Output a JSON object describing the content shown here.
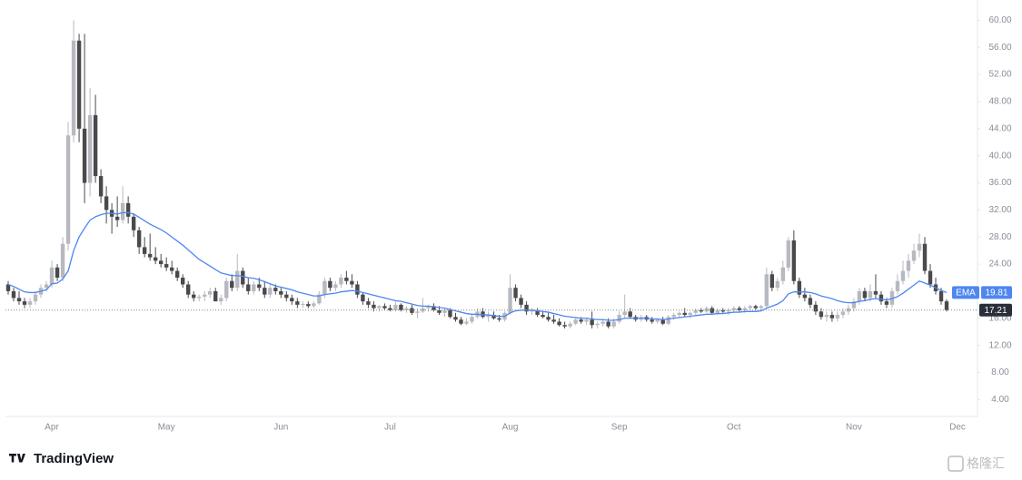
{
  "chart_data": {
    "type": "candlestick",
    "categories": [
      null,
      null,
      null,
      null,
      null,
      null,
      null,
      null,
      "Apr",
      null,
      null,
      null,
      null,
      null,
      null,
      null,
      null,
      null,
      null,
      null,
      null,
      null,
      null,
      null,
      null,
      null,
      null,
      null,
      null,
      "May",
      null,
      null,
      null,
      null,
      null,
      null,
      null,
      null,
      null,
      null,
      null,
      null,
      null,
      null,
      null,
      null,
      null,
      null,
      null,
      null,
      "Jun",
      null,
      null,
      null,
      null,
      null,
      null,
      null,
      null,
      null,
      null,
      null,
      null,
      null,
      null,
      null,
      null,
      null,
      null,
      null,
      "Jul",
      null,
      null,
      null,
      null,
      null,
      null,
      null,
      null,
      null,
      null,
      null,
      null,
      null,
      null,
      null,
      null,
      null,
      null,
      null,
      null,
      null,
      "Aug",
      null,
      null,
      null,
      null,
      null,
      null,
      null,
      null,
      null,
      null,
      null,
      null,
      null,
      null,
      null,
      null,
      null,
      null,
      null,
      "Sep",
      null,
      null,
      null,
      null,
      null,
      null,
      null,
      null,
      null,
      null,
      null,
      null,
      null,
      null,
      null,
      null,
      null,
      null,
      null,
      null,
      "Oct",
      null,
      null,
      null,
      null,
      null,
      null,
      null,
      null,
      null,
      null,
      null,
      null,
      null,
      null,
      null,
      null,
      null,
      null,
      null,
      null,
      null,
      "Nov",
      null,
      null,
      null,
      null,
      null,
      null,
      null,
      null,
      null,
      null,
      null,
      null,
      null,
      null,
      null,
      null,
      null,
      null,
      "Dec"
    ],
    "ohlc": [
      [
        21,
        21.5,
        19.5,
        20
      ],
      [
        20,
        20.5,
        18.5,
        19
      ],
      [
        19,
        20,
        18,
        18.5
      ],
      [
        18.5,
        19,
        17.5,
        18
      ],
      [
        18,
        19,
        17.5,
        18.5
      ],
      [
        18.5,
        20,
        18,
        19.5
      ],
      [
        19.5,
        21,
        19,
        20.5
      ],
      [
        20.5,
        21.5,
        20,
        21
      ],
      [
        21,
        24.5,
        20.5,
        23.5
      ],
      [
        23.5,
        24,
        21.5,
        22
      ],
      [
        22,
        28,
        21.5,
        27
      ],
      [
        27,
        45,
        26,
        43
      ],
      [
        43,
        60,
        42,
        57
      ],
      [
        57,
        58,
        42,
        44
      ],
      [
        44,
        58,
        33,
        36
      ],
      [
        36,
        50,
        34,
        46
      ],
      [
        46,
        49,
        36,
        37
      ],
      [
        37,
        38,
        33,
        34
      ],
      [
        34,
        35.5,
        30,
        32
      ],
      [
        32,
        33,
        28.5,
        31
      ],
      [
        31,
        34,
        29.5,
        30.5
      ],
      [
        30.5,
        35.5,
        30,
        33
      ],
      [
        33,
        34,
        30,
        31
      ],
      [
        31,
        31.5,
        28,
        29
      ],
      [
        29,
        29.5,
        25.5,
        26.5
      ],
      [
        26.5,
        28,
        25,
        25.5
      ],
      [
        25.5,
        28.5,
        24.5,
        25
      ],
      [
        25,
        26.5,
        24,
        24.5
      ],
      [
        24.5,
        25.5,
        23.5,
        24
      ],
      [
        24,
        25,
        23,
        23.5
      ],
      [
        23.5,
        24.5,
        22.5,
        23
      ],
      [
        23,
        23.5,
        21.5,
        22
      ],
      [
        22,
        22.5,
        20.5,
        21
      ],
      [
        21,
        21.5,
        19,
        19.5
      ],
      [
        19.5,
        20,
        18.5,
        19
      ],
      [
        19,
        19.5,
        18.5,
        19.2
      ],
      [
        19.2,
        20,
        18.5,
        19.5
      ],
      [
        19.5,
        20.5,
        19,
        20
      ],
      [
        20,
        20.5,
        18.5,
        18.5
      ],
      [
        18.5,
        19.5,
        18,
        19
      ],
      [
        19,
        22,
        18.5,
        21.5
      ],
      [
        21.5,
        22.5,
        20,
        20.5
      ],
      [
        20.5,
        25.5,
        20,
        23
      ],
      [
        23,
        23.5,
        20.5,
        21
      ],
      [
        21,
        22,
        19.5,
        20
      ],
      [
        20,
        21.5,
        19.5,
        21
      ],
      [
        21,
        22,
        20,
        20.5
      ],
      [
        20.5,
        21.5,
        19,
        19.5
      ],
      [
        19.5,
        21,
        19,
        20.5
      ],
      [
        20.5,
        21,
        19.5,
        20
      ],
      [
        20,
        20.5,
        19,
        19.5
      ],
      [
        19.5,
        20,
        18.5,
        19
      ],
      [
        19,
        19.5,
        18,
        18.5
      ],
      [
        18.5,
        19,
        17.5,
        18
      ],
      [
        18,
        18.5,
        17.5,
        18.1
      ],
      [
        18.1,
        18.5,
        17.5,
        17.8
      ],
      [
        17.8,
        18.5,
        17.5,
        18.2
      ],
      [
        18.2,
        20,
        18,
        19.5
      ],
      [
        19.5,
        22,
        19,
        21.5
      ],
      [
        21.5,
        22,
        20,
        20.5
      ],
      [
        20.5,
        21.5,
        20,
        21
      ],
      [
        21,
        22.5,
        20.5,
        22
      ],
      [
        22,
        23,
        21,
        21.5
      ],
      [
        21.5,
        22.5,
        20.5,
        21
      ],
      [
        21,
        21.5,
        19,
        19.5
      ],
      [
        19.5,
        19.8,
        18,
        18.5
      ],
      [
        18.5,
        19,
        17.5,
        18
      ],
      [
        18,
        18.5,
        17,
        17.5
      ],
      [
        17.5,
        18,
        17,
        17.8
      ],
      [
        17.8,
        18.2,
        17.2,
        17.5
      ],
      [
        17.5,
        18,
        17,
        17.2
      ],
      [
        17.2,
        18.5,
        17,
        18
      ],
      [
        18,
        18.2,
        17,
        17.2
      ],
      [
        17.2,
        17.8,
        16.8,
        17.5
      ],
      [
        17.5,
        18,
        16.5,
        16.8
      ],
      [
        16.8,
        17.5,
        16,
        17
      ],
      [
        17,
        19,
        16.8,
        17.5
      ],
      [
        17.5,
        18,
        17,
        17.8
      ],
      [
        17.8,
        18.2,
        17,
        17.2
      ],
      [
        17.2,
        17.8,
        16.5,
        16.8
      ],
      [
        16.8,
        17.5,
        16.2,
        17.2
      ],
      [
        17.2,
        17.5,
        16,
        16.2
      ],
      [
        16.2,
        16.8,
        15.5,
        15.8
      ],
      [
        15.8,
        16.2,
        15,
        15.2
      ],
      [
        15.2,
        16,
        15,
        15.5
      ],
      [
        15.5,
        16.5,
        15.2,
        16.2
      ],
      [
        16.2,
        17.5,
        16,
        17
      ],
      [
        17,
        17.5,
        16,
        16.2
      ],
      [
        16.2,
        17,
        15.5,
        16.5
      ],
      [
        16.5,
        17,
        15.8,
        16
      ],
      [
        16,
        16.5,
        15.5,
        15.8
      ],
      [
        15.8,
        17,
        15.5,
        16.8
      ],
      [
        16.8,
        22.5,
        16.5,
        20.5
      ],
      [
        20.5,
        21,
        18.5,
        19
      ],
      [
        19,
        19.5,
        17.5,
        18
      ],
      [
        18,
        18.5,
        16.5,
        17
      ],
      [
        17,
        17.5,
        16.5,
        17.2
      ],
      [
        17.2,
        17.5,
        16.2,
        16.5
      ],
      [
        16.5,
        17,
        16,
        16.2
      ],
      [
        16.2,
        16.8,
        15.5,
        15.8
      ],
      [
        15.8,
        16.5,
        15.2,
        15.5
      ],
      [
        15.5,
        16,
        14.8,
        15
      ],
      [
        15,
        15.5,
        14.5,
        14.8
      ],
      [
        14.8,
        15.5,
        14.5,
        15.2
      ],
      [
        15.2,
        16,
        15,
        15.8
      ],
      [
        15.8,
        16.2,
        15.2,
        15.5
      ],
      [
        15.5,
        16,
        15,
        15.8
      ],
      [
        15.8,
        17,
        14.5,
        15
      ],
      [
        15,
        15.5,
        14.5,
        15.2
      ],
      [
        15.2,
        15.8,
        14.8,
        15.5
      ],
      [
        15.5,
        16,
        14.5,
        14.8
      ],
      [
        14.8,
        16,
        14.5,
        15.5
      ],
      [
        15.5,
        17,
        15.2,
        16.5
      ],
      [
        16.5,
        19.5,
        16,
        17
      ],
      [
        17,
        17.5,
        16,
        16.2
      ],
      [
        16.2,
        16.5,
        15.5,
        15.8
      ],
      [
        15.8,
        16.5,
        15.5,
        16.2
      ],
      [
        16.2,
        16.5,
        15.5,
        15.8
      ],
      [
        15.8,
        16.2,
        15.2,
        15.5
      ],
      [
        15.5,
        16,
        15.2,
        15.8
      ],
      [
        15.8,
        16.2,
        15,
        15.2
      ],
      [
        15.2,
        16.5,
        15,
        16.2
      ],
      [
        16.2,
        16.8,
        15.8,
        16.5
      ],
      [
        16.5,
        17,
        16,
        16.8
      ],
      [
        16.8,
        17.5,
        16.2,
        16.5
      ],
      [
        16.5,
        17,
        16,
        16.8
      ],
      [
        16.8,
        17.5,
        16.5,
        17.2
      ],
      [
        17.2,
        17.5,
        16.8,
        17
      ],
      [
        17,
        17.8,
        16.8,
        17.5
      ],
      [
        17.5,
        17.8,
        16.5,
        16.8
      ],
      [
        16.8,
        17.5,
        16.5,
        17.2
      ],
      [
        17.2,
        17.5,
        16.8,
        17
      ],
      [
        17,
        17.5,
        16.5,
        17.2
      ],
      [
        17.2,
        17.8,
        16.8,
        17.5
      ],
      [
        17.5,
        17.8,
        17,
        17.2
      ],
      [
        17.2,
        17.8,
        16.8,
        17.5
      ],
      [
        17.5,
        18,
        17.2,
        17.8
      ],
      [
        17.8,
        18,
        17.2,
        17.5
      ],
      [
        17.5,
        18,
        17.2,
        17.8
      ],
      [
        17.8,
        23.5,
        17.5,
        22.5
      ],
      [
        22.5,
        23,
        20,
        20.5
      ],
      [
        20.5,
        22,
        20,
        21.5
      ],
      [
        21.5,
        24.5,
        21,
        23.5
      ],
      [
        23.5,
        28,
        23,
        27.5
      ],
      [
        27.5,
        29,
        21,
        21.5
      ],
      [
        21.5,
        22,
        19,
        19.5
      ],
      [
        19.5,
        20.5,
        18.5,
        19
      ],
      [
        19,
        19.5,
        17.5,
        18
      ],
      [
        18,
        18.5,
        16.5,
        17
      ],
      [
        17,
        17.5,
        15.8,
        16.2
      ],
      [
        16.2,
        17,
        15.5,
        16.5
      ],
      [
        16.5,
        17,
        15.5,
        16
      ],
      [
        16,
        17,
        15.5,
        16.5
      ],
      [
        16.5,
        17.5,
        16,
        17
      ],
      [
        17,
        18,
        16.5,
        17.5
      ],
      [
        17.5,
        19,
        17,
        18.5
      ],
      [
        18.5,
        20.5,
        18,
        20
      ],
      [
        20,
        20.5,
        18.5,
        19
      ],
      [
        19,
        21,
        18.5,
        20
      ],
      [
        20,
        22.5,
        19,
        19.5
      ],
      [
        19.5,
        20,
        18,
        18.5
      ],
      [
        18.5,
        19,
        17.5,
        18
      ],
      [
        18,
        20.5,
        17.5,
        20
      ],
      [
        20,
        22.5,
        19.5,
        21.5
      ],
      [
        21.5,
        24.5,
        21,
        23
      ],
      [
        23,
        25.5,
        22,
        24.5
      ],
      [
        24.5,
        27,
        24,
        26
      ],
      [
        26,
        28.5,
        25,
        27
      ],
      [
        27,
        28,
        22.5,
        23
      ],
      [
        23,
        24,
        20.5,
        21
      ],
      [
        21,
        22,
        19.5,
        20
      ],
      [
        20,
        20.5,
        18,
        18.5
      ],
      [
        18.5,
        18.8,
        17,
        17.21
      ],
      null,
      null
    ],
    "ema": {
      "name": "EMA",
      "color": "#4f86f0",
      "values": [
        21,
        20.7,
        20.3,
        19.9,
        19.8,
        19.8,
        20,
        20.2,
        21.1,
        21.2,
        21.8,
        23,
        26,
        28,
        29.3,
        30.5,
        31,
        31.3,
        31.5,
        31.5,
        31.4,
        31.6,
        31.6,
        31.4,
        30.9,
        30.4,
        29.9,
        29.5,
        29.1,
        28.6,
        28,
        27.4,
        26.8,
        26.1,
        25.4,
        24.7,
        24.2,
        23.7,
        23.2,
        22.7,
        22.5,
        22.3,
        22.3,
        22.2,
        22,
        21.9,
        21.7,
        21.4,
        21.1,
        20.8,
        20.6,
        20.4,
        20.2,
        19.9,
        19.7,
        19.5,
        19.3,
        19.3,
        19.5,
        19.6,
        19.7,
        19.9,
        20,
        20.1,
        20,
        19.8,
        19.6,
        19.4,
        19.2,
        19,
        18.8,
        18.6,
        18.5,
        18.3,
        18.1,
        17.9,
        17.8,
        17.8,
        17.7,
        17.6,
        17.5,
        17.3,
        17.1,
        16.9,
        16.7,
        16.6,
        16.6,
        16.5,
        16.5,
        16.4,
        16.3,
        16.3,
        16.8,
        17.1,
        17.2,
        17.2,
        17.2,
        17.1,
        17,
        16.9,
        16.7,
        16.5,
        16.3,
        16.2,
        16.1,
        16,
        16,
        15.9,
        15.8,
        15.8,
        15.7,
        15.7,
        15.8,
        16,
        16,
        16,
        16,
        16,
        15.9,
        15.9,
        15.8,
        15.9,
        16,
        16.1,
        16.2,
        16.3,
        16.4,
        16.5,
        16.6,
        16.6,
        16.7,
        16.7,
        16.8,
        16.9,
        16.9,
        17,
        17,
        17,
        17.1,
        17.5,
        17.8,
        18.1,
        18.6,
        19.6,
        19.9,
        19.9,
        19.9,
        19.8,
        19.6,
        19.3,
        19.1,
        18.9,
        18.6,
        18.4,
        18.3,
        18.3,
        18.5,
        18.6,
        18.8,
        18.9,
        18.8,
        18.7,
        18.9,
        19.2,
        19.7,
        20.3,
        20.9,
        21.5,
        21.2,
        20.9,
        20.5,
        20.1,
        19.81,
        null,
        null
      ]
    },
    "up_color": "#b7b9c0",
    "down_color": "#4a4a4d",
    "ylim": [
      1.5,
      63
    ],
    "yticks": [
      {
        "value": 4,
        "label": "4.00"
      },
      {
        "value": 8,
        "label": "8.00"
      },
      {
        "value": 12,
        "label": "12.00"
      },
      {
        "value": 16,
        "label": "16.00"
      },
      {
        "value": 20,
        "label": "20.00"
      },
      {
        "value": 24,
        "label": "24.00"
      },
      {
        "value": 28,
        "label": "28.00"
      },
      {
        "value": 32,
        "label": "32.00"
      },
      {
        "value": 36,
        "label": "36.00"
      },
      {
        "value": 40,
        "label": "40.00"
      },
      {
        "value": 44,
        "label": "44.00"
      },
      {
        "value": 48,
        "label": "48.00"
      },
      {
        "value": 52,
        "label": "52.00"
      },
      {
        "value": 56,
        "label": "56.00"
      },
      {
        "value": 60,
        "label": "60.00"
      }
    ],
    "grid": false
  },
  "footer": {
    "brand": "TradingView",
    "watermark": "格隆汇"
  }
}
